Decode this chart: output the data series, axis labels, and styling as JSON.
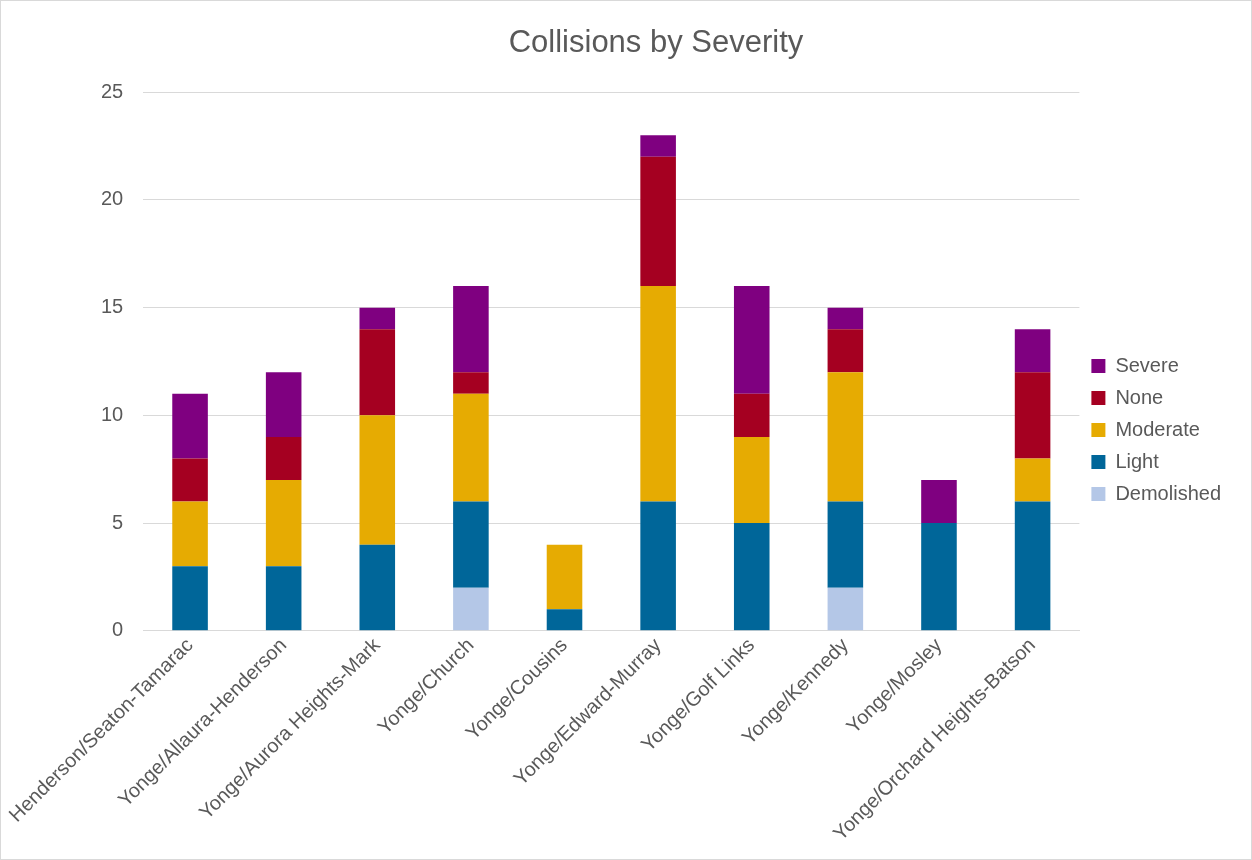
{
  "chart_data": {
    "type": "bar",
    "title": "Collisions by Severity",
    "stacked": true,
    "grid": "y",
    "legend": "right",
    "categories": [
      "Henderson/Seaton-Tamarac",
      "Yonge/Allaura-Henderson",
      "Yonge/Aurora Heights-Mark",
      "Yonge/Church",
      "Yonge/Cousins",
      "Yonge/Edward-Murray",
      "Yonge/Golf Links",
      "Yonge/Kennedy",
      "Yonge/Mosley",
      "Yonge/Orchard Heights-Batson"
    ],
    "series": [
      {
        "name": "Demolished",
        "color": "#b4c7e7",
        "values": [
          null,
          null,
          null,
          2,
          null,
          null,
          null,
          2,
          null,
          null
        ]
      },
      {
        "name": "Light",
        "color": "#006699",
        "values": [
          3,
          3,
          4,
          4,
          1,
          6,
          5,
          4,
          5,
          6
        ]
      },
      {
        "name": "Moderate",
        "color": "#e6ab02",
        "values": [
          3,
          4,
          6,
          5,
          3,
          10,
          4,
          6,
          null,
          2
        ]
      },
      {
        "name": "None",
        "color": "#a50021",
        "values": [
          2,
          2,
          4,
          1,
          null,
          6,
          2,
          2,
          null,
          4
        ]
      },
      {
        "name": "Severe",
        "color": "#7f0080",
        "values": [
          3,
          3,
          1,
          4,
          null,
          1,
          5,
          1,
          2,
          2
        ]
      }
    ],
    "ylim": [
      0,
      25
    ],
    "yticks": [
      0,
      5,
      10,
      15,
      20,
      25
    ]
  }
}
